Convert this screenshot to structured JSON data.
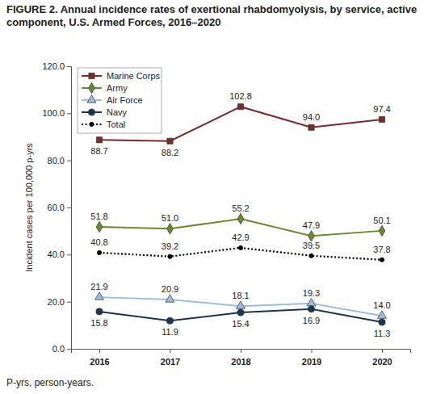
{
  "chart_data": {
    "type": "line",
    "title": "FIGURE 2. Annual incidence rates of exertional rhabdomyolysis, by service, active component, U.S. Armed Forces, 2016–2020",
    "y_label": "Incident cases per 100,000 p-yrs",
    "footnote": "P-yrs, person-years.",
    "categories": [
      "2016",
      "2017",
      "2018",
      "2019",
      "2020"
    ],
    "series": [
      {
        "name": "Marine Corps",
        "color": "#7b2a2a",
        "marker": "square",
        "line_style": "solid",
        "values": [
          88.7,
          88.2,
          102.8,
          94.0,
          97.4
        ],
        "value_labels": [
          "88.7",
          "88.2",
          "102.8",
          "94.0",
          "97.4"
        ]
      },
      {
        "name": "Army",
        "color": "#6b8a2e",
        "marker": "diamond",
        "line_style": "solid",
        "values": [
          51.8,
          51.0,
          55.2,
          47.9,
          50.1
        ],
        "value_labels": [
          "51.8",
          "51.0",
          "55.2",
          "47.9",
          "50.1"
        ]
      },
      {
        "name": "Air Force",
        "color": "#9dbde0",
        "marker": "triangle",
        "line_style": "solid",
        "values": [
          21.9,
          20.9,
          18.1,
          19.3,
          14.0
        ],
        "value_labels": [
          "21.9",
          "20.9",
          "18.1",
          "19.3",
          "14.0"
        ]
      },
      {
        "name": "Navy",
        "color": "#1c3553",
        "marker": "circle",
        "line_style": "solid",
        "values": [
          15.8,
          11.9,
          15.4,
          16.9,
          11.3
        ],
        "value_labels": [
          "15.8",
          "11.9",
          "15.4",
          "16.9",
          "11.3"
        ]
      },
      {
        "name": "Total",
        "color": "#000000",
        "marker": "circle",
        "line_style": "dotted",
        "values": [
          40.8,
          39.2,
          42.9,
          39.5,
          37.8
        ],
        "value_labels": [
          "40.8",
          "39.2",
          "42.9",
          "39.5",
          "37.8"
        ]
      }
    ],
    "ylim": [
      0,
      120
    ],
    "yticks": [
      {
        "value": 0,
        "label": "0.0"
      },
      {
        "value": 20,
        "label": "20.0"
      },
      {
        "value": 40,
        "label": "40.0"
      },
      {
        "value": 60,
        "label": "60.0"
      },
      {
        "value": 80,
        "label": "80.0"
      },
      {
        "value": 100,
        "label": "100.0"
      },
      {
        "value": 120,
        "label": "120.0"
      }
    ],
    "grid": false,
    "legend": "upper left",
    "data_labels": true
  }
}
